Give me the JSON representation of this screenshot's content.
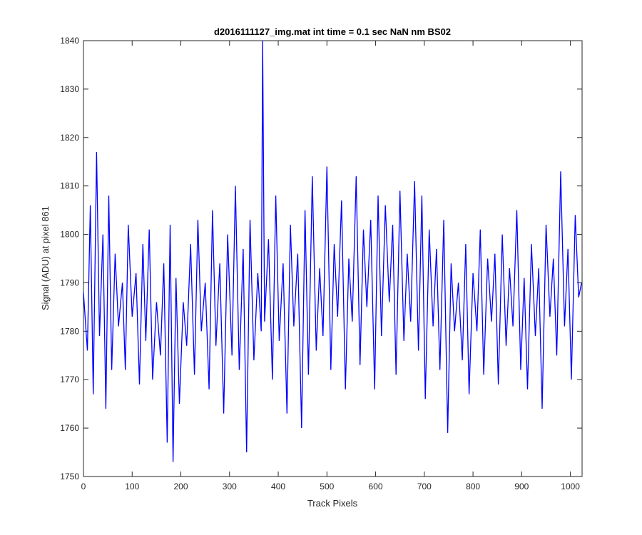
{
  "chart_data": {
    "type": "line",
    "title": "d2016111127_img.mat int time = 0.1 sec  NaN nm BS02",
    "xlabel": "Track Pixels",
    "ylabel": "Signal (ADU) at pixel 861",
    "xlim": [
      0,
      1024
    ],
    "ylim": [
      1750,
      1840
    ],
    "xticks": [
      0,
      100,
      200,
      300,
      400,
      500,
      600,
      700,
      800,
      900,
      1000
    ],
    "yticks": [
      1750,
      1760,
      1770,
      1780,
      1790,
      1800,
      1810,
      1820,
      1830,
      1840
    ],
    "grid": false,
    "line_color": "#0000ff",
    "series": [
      {
        "x": [
          0,
          8,
          14,
          20,
          27,
          33,
          40,
          46,
          52,
          58,
          65,
          72,
          80,
          86,
          92,
          100,
          108,
          115,
          122,
          128,
          135,
          142,
          150,
          158,
          165,
          172,
          178,
          184,
          190,
          197,
          205,
          212,
          220,
          228,
          235,
          242,
          250,
          258,
          265,
          272,
          280,
          288,
          296,
          305,
          312,
          320,
          328,
          335,
          342,
          350,
          358,
          365,
          368,
          372,
          380,
          388,
          395,
          402,
          410,
          418,
          425,
          432,
          440,
          448,
          455,
          462,
          470,
          478,
          485,
          492,
          500,
          508,
          515,
          522,
          530,
          538,
          545,
          552,
          560,
          568,
          575,
          582,
          590,
          598,
          605,
          612,
          620,
          628,
          635,
          642,
          650,
          658,
          665,
          672,
          680,
          688,
          695,
          702,
          710,
          718,
          725,
          732,
          740,
          748,
          755,
          762,
          770,
          778,
          785,
          792,
          800,
          808,
          815,
          822,
          830,
          838,
          845,
          852,
          860,
          868,
          875,
          882,
          890,
          898,
          905,
          912,
          920,
          928,
          935,
          942,
          950,
          958,
          965,
          972,
          980,
          988,
          995,
          1002,
          1010,
          1017,
          1023
        ],
        "y": [
          1788,
          1776,
          1806,
          1767,
          1817,
          1779,
          1800,
          1764,
          1808,
          1772,
          1796,
          1781,
          1790,
          1772,
          1802,
          1783,
          1792,
          1769,
          1798,
          1778,
          1801,
          1770,
          1786,
          1775,
          1794,
          1757,
          1802,
          1753,
          1791,
          1765,
          1786,
          1777,
          1798,
          1771,
          1803,
          1780,
          1790,
          1768,
          1805,
          1777,
          1794,
          1763,
          1800,
          1775,
          1810,
          1772,
          1797,
          1755,
          1803,
          1774,
          1792,
          1780,
          1840,
          1782,
          1799,
          1770,
          1808,
          1778,
          1794,
          1763,
          1802,
          1781,
          1796,
          1760,
          1805,
          1771,
          1812,
          1776,
          1793,
          1779,
          1814,
          1772,
          1798,
          1783,
          1807,
          1768,
          1795,
          1782,
          1812,
          1773,
          1801,
          1785,
          1803,
          1768,
          1808,
          1779,
          1806,
          1786,
          1802,
          1771,
          1809,
          1778,
          1796,
          1782,
          1811,
          1776,
          1808,
          1766,
          1801,
          1781,
          1797,
          1772,
          1803,
          1759,
          1794,
          1780,
          1790,
          1774,
          1798,
          1767,
          1792,
          1780,
          1801,
          1771,
          1795,
          1782,
          1796,
          1769,
          1800,
          1777,
          1793,
          1781,
          1805,
          1772,
          1791,
          1768,
          1798,
          1779,
          1793,
          1764,
          1802,
          1783,
          1795,
          1775,
          1813,
          1781,
          1797,
          1770,
          1804,
          1787,
          1790
        ]
      }
    ]
  }
}
